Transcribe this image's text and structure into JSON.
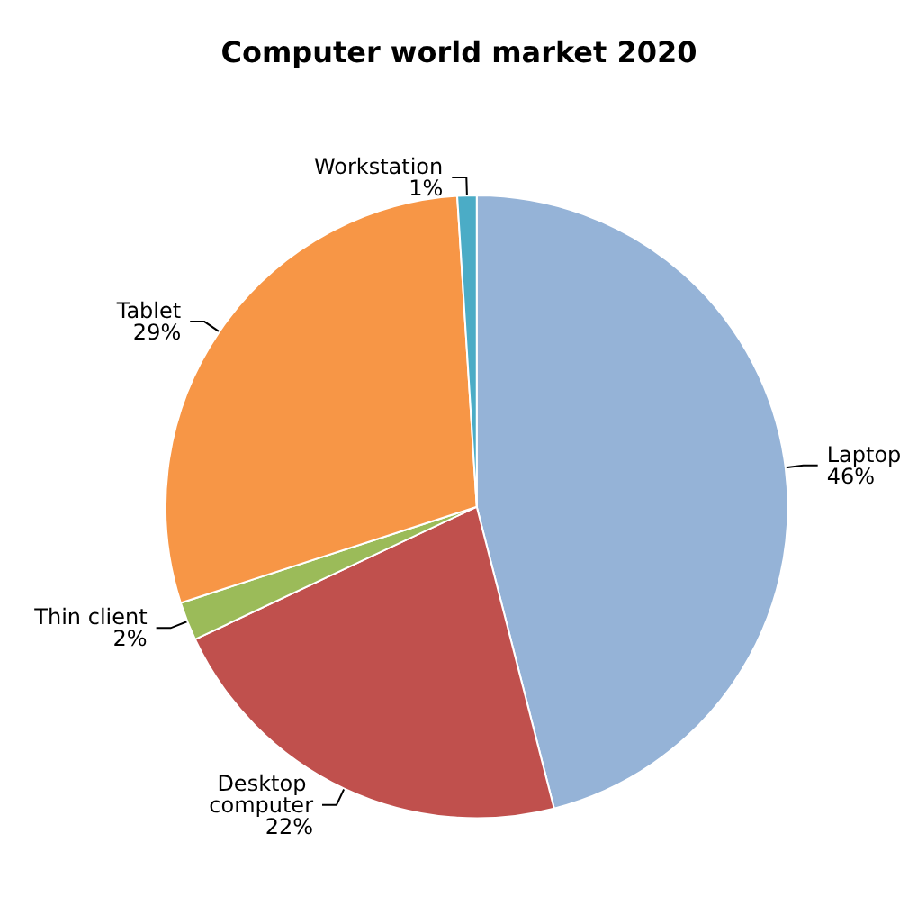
{
  "chart_data": {
    "type": "pie",
    "title": "Computer world market 2020",
    "categories": [
      "Laptop",
      "Desktop computer",
      "Thin client",
      "Tablet",
      "Workstation"
    ],
    "values": [
      46,
      22,
      2,
      29,
      1
    ],
    "value_labels": [
      "46%",
      "22%",
      "2%",
      "29%",
      "1%"
    ],
    "colors": [
      "#95b3d7",
      "#c0504d",
      "#9bbb59",
      "#f79646",
      "#4bacc6"
    ],
    "legend": false
  }
}
